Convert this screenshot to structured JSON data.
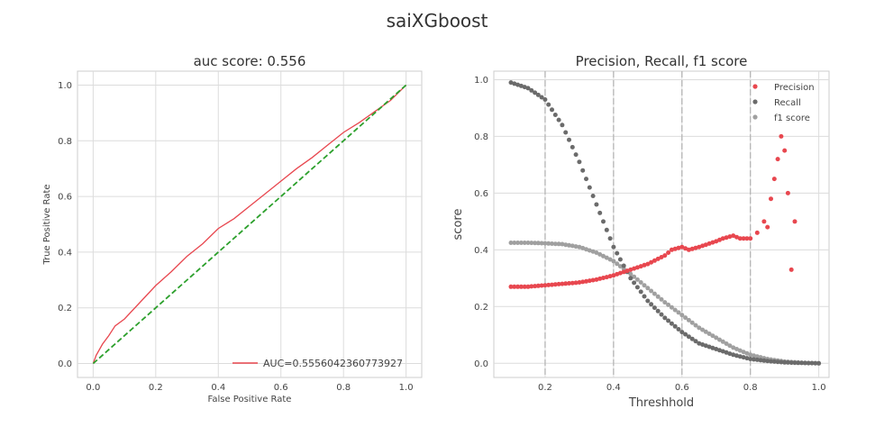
{
  "figure": {
    "title": "saiXGboost"
  },
  "chart_data": [
    {
      "type": "line",
      "title": "auc score: 0.556",
      "xlabel": "False Positive Rate",
      "ylabel": "True Positive Rate",
      "xlim": [
        -0.05,
        1.05
      ],
      "ylim": [
        -0.05,
        1.05
      ],
      "xticks": [
        "0.0",
        "0.2",
        "0.4",
        "0.6",
        "0.8",
        "1.0"
      ],
      "yticks": [
        "0.0",
        "0.2",
        "0.4",
        "0.6",
        "0.8",
        "1.0"
      ],
      "grid": true,
      "legend": "lower-right",
      "colors": {
        "roc": "#e8474f",
        "diagonal": "#2ca02c"
      },
      "series": [
        {
          "name": "AUC=0.5556042360773927",
          "x": [
            0,
            0.01,
            0.03,
            0.05,
            0.07,
            0.1,
            0.15,
            0.2,
            0.25,
            0.3,
            0.35,
            0.4,
            0.45,
            0.5,
            0.55,
            0.6,
            0.65,
            0.7,
            0.75,
            0.8,
            0.85,
            0.9,
            0.95,
            1.0
          ],
          "y": [
            0,
            0.03,
            0.07,
            0.1,
            0.135,
            0.16,
            0.22,
            0.28,
            0.33,
            0.385,
            0.43,
            0.485,
            0.52,
            0.565,
            0.61,
            0.655,
            0.7,
            0.74,
            0.785,
            0.83,
            0.865,
            0.905,
            0.945,
            1.0
          ]
        },
        {
          "name": "",
          "x": [
            0,
            1
          ],
          "y": [
            0,
            1
          ]
        }
      ]
    },
    {
      "type": "scatter",
      "title": "Precision, Recall, f1 score",
      "xlabel": "Threshhold",
      "ylabel": "score",
      "xlim": [
        0.05,
        1.03
      ],
      "ylim": [
        -0.05,
        1.03
      ],
      "xticks": [
        "0.2",
        "0.4",
        "0.6",
        "0.8",
        "1.0"
      ],
      "yticks": [
        "0.0",
        "0.2",
        "0.4",
        "0.6",
        "0.8",
        "1.0"
      ],
      "grid": true,
      "vlines": [
        0.2,
        0.4,
        0.6,
        0.8
      ],
      "legend": "top-right",
      "series": [
        {
          "name": "Precision",
          "color": "#e8474f",
          "x": [
            0.1,
            0.15,
            0.2,
            0.25,
            0.3,
            0.35,
            0.4,
            0.45,
            0.5,
            0.55,
            0.57,
            0.6,
            0.62,
            0.65,
            0.7,
            0.72,
            0.75,
            0.77,
            0.8,
            0.82,
            0.84,
            0.85,
            0.86,
            0.87,
            0.88,
            0.89,
            0.9,
            0.91,
            0.92,
            0.93
          ],
          "y": [
            0.27,
            0.27,
            0.275,
            0.28,
            0.285,
            0.295,
            0.31,
            0.33,
            0.35,
            0.38,
            0.4,
            0.41,
            0.4,
            0.41,
            0.43,
            0.44,
            0.45,
            0.44,
            0.44,
            0.46,
            0.5,
            0.48,
            0.58,
            0.65,
            0.72,
            0.8,
            0.75,
            0.6,
            0.33,
            0.5
          ]
        },
        {
          "name": "Recall",
          "color": "#6b6b6b",
          "x": [
            0.1,
            0.15,
            0.2,
            0.25,
            0.3,
            0.35,
            0.4,
            0.45,
            0.5,
            0.55,
            0.6,
            0.65,
            0.7,
            0.75,
            0.8,
            0.85,
            0.9,
            0.95,
            1.0
          ],
          "y": [
            0.99,
            0.97,
            0.93,
            0.84,
            0.71,
            0.56,
            0.41,
            0.3,
            0.22,
            0.16,
            0.11,
            0.07,
            0.05,
            0.03,
            0.015,
            0.008,
            0.003,
            0.001,
            0.0
          ]
        },
        {
          "name": "f1 score",
          "color": "#a0a0a0",
          "x": [
            0.1,
            0.15,
            0.2,
            0.25,
            0.3,
            0.35,
            0.4,
            0.45,
            0.5,
            0.55,
            0.6,
            0.65,
            0.7,
            0.75,
            0.8,
            0.85,
            0.9,
            0.95,
            1.0
          ],
          "y": [
            0.425,
            0.425,
            0.423,
            0.42,
            0.41,
            0.39,
            0.36,
            0.315,
            0.265,
            0.215,
            0.17,
            0.125,
            0.09,
            0.055,
            0.03,
            0.015,
            0.006,
            0.002,
            0.0
          ]
        }
      ]
    }
  ]
}
